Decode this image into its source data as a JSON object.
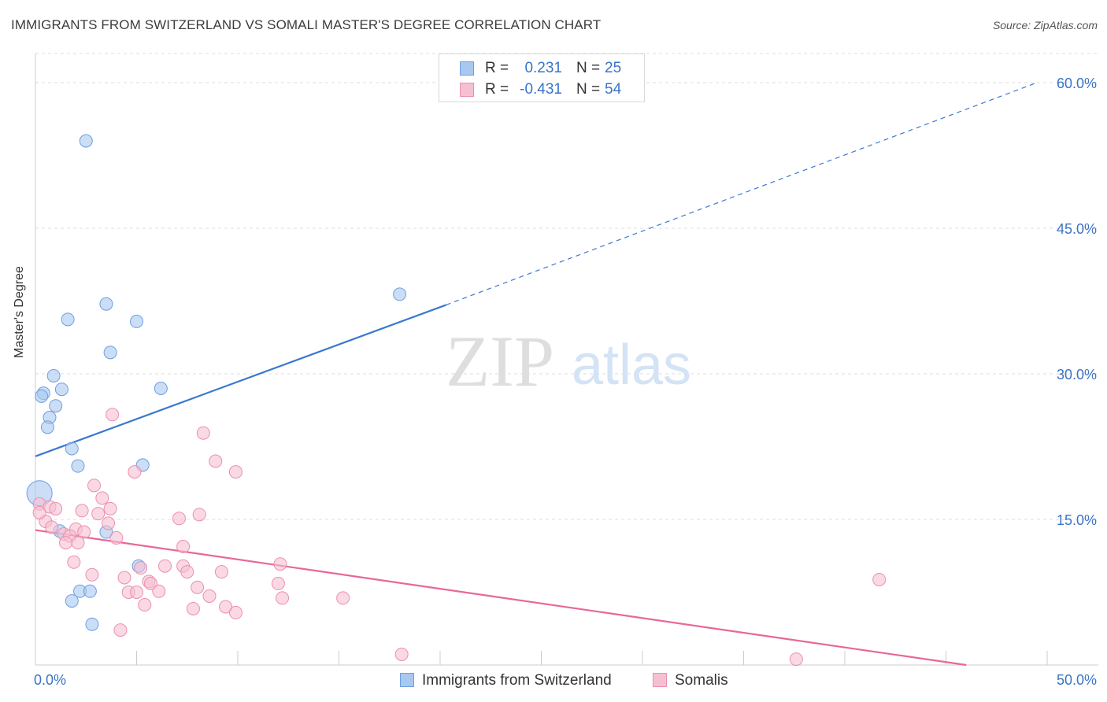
{
  "header": {
    "title": "IMMIGRANTS FROM SWITZERLAND VS SOMALI MASTER'S DEGREE CORRELATION CHART",
    "source": "Source: ZipAtlas.com"
  },
  "watermark": {
    "zip": "ZIP",
    "atlas": "atlas"
  },
  "stats": [
    {
      "r_label": "R =",
      "r_value": "0.231",
      "n_label": "N =",
      "n_value": "25",
      "color": "#a9c8f0",
      "border": "#6d9fe0"
    },
    {
      "r_label": "R =",
      "r_value": "-0.431",
      "n_label": "N =",
      "n_value": "54",
      "color": "#f7c0d2",
      "border": "#eb8fae"
    }
  ],
  "legend": {
    "switzerland": "Immigrants from Switzerland",
    "somalis": "Somalis"
  },
  "chart_data": {
    "type": "scatter",
    "title": "IMMIGRANTS FROM SWITZERLAND VS SOMALI MASTER'S DEGREE CORRELATION CHART",
    "ylabel": "Master's Degree",
    "xlabel": "",
    "xlim": [
      0,
      50
    ],
    "ylim": [
      0,
      63
    ],
    "x_tick_labels": [
      {
        "value": 0,
        "label": "0.0%"
      },
      {
        "value": 50,
        "label": "50.0%"
      }
    ],
    "y_tick_labels": [
      {
        "value": 15,
        "label": "15.0%"
      },
      {
        "value": 30,
        "label": "30.0%"
      },
      {
        "value": 45,
        "label": "45.0%"
      },
      {
        "value": 60,
        "label": "60.0%"
      }
    ],
    "series": [
      {
        "name": "Immigrants from Switzerland",
        "color": "#a9c8f0",
        "edge": "#6d9fe0",
        "line_color": "#3a78d0",
        "trend": {
          "x0": 0,
          "y0": 21.5,
          "x1": 20.3,
          "y1": 37.1,
          "dash_to_x": 49.5,
          "dash_to_y": 60.0
        },
        "points": [
          {
            "x": 2.5,
            "y": 54.0,
            "big": false
          },
          {
            "x": 18.0,
            "y": 38.2,
            "big": false
          },
          {
            "x": 3.5,
            "y": 37.2,
            "big": false
          },
          {
            "x": 1.6,
            "y": 35.6,
            "big": false
          },
          {
            "x": 5.0,
            "y": 35.4,
            "big": false
          },
          {
            "x": 3.7,
            "y": 32.2,
            "big": false
          },
          {
            "x": 0.9,
            "y": 29.8,
            "big": false
          },
          {
            "x": 6.2,
            "y": 28.5,
            "big": false
          },
          {
            "x": 0.4,
            "y": 28.0,
            "big": false
          },
          {
            "x": 1.3,
            "y": 28.4,
            "big": false
          },
          {
            "x": 0.3,
            "y": 27.7,
            "big": false
          },
          {
            "x": 1.0,
            "y": 26.7,
            "big": false
          },
          {
            "x": 0.7,
            "y": 25.5,
            "big": false
          },
          {
            "x": 0.6,
            "y": 24.5,
            "big": false
          },
          {
            "x": 1.8,
            "y": 22.3,
            "big": false
          },
          {
            "x": 2.1,
            "y": 20.5,
            "big": false
          },
          {
            "x": 5.3,
            "y": 20.6,
            "big": false
          },
          {
            "x": 0.2,
            "y": 17.7,
            "big": true
          },
          {
            "x": 1.2,
            "y": 13.8,
            "big": false
          },
          {
            "x": 3.5,
            "y": 13.7,
            "big": false
          },
          {
            "x": 5.1,
            "y": 10.2,
            "big": false
          },
          {
            "x": 2.2,
            "y": 7.6,
            "big": false
          },
          {
            "x": 2.7,
            "y": 7.6,
            "big": false
          },
          {
            "x": 1.8,
            "y": 6.6,
            "big": false
          },
          {
            "x": 2.8,
            "y": 4.2,
            "big": false
          }
        ]
      },
      {
        "name": "Somalis",
        "color": "#f7c0d2",
        "edge": "#eb8fae",
        "line_color": "#e8679a",
        "trend": {
          "x0": 0,
          "y0": 13.9,
          "x1": 46.0,
          "y1": 0.0
        },
        "points": [
          {
            "x": 3.8,
            "y": 25.8
          },
          {
            "x": 8.3,
            "y": 23.9
          },
          {
            "x": 8.9,
            "y": 21.0
          },
          {
            "x": 9.9,
            "y": 19.9
          },
          {
            "x": 4.9,
            "y": 19.9
          },
          {
            "x": 2.9,
            "y": 18.5
          },
          {
            "x": 3.3,
            "y": 17.2
          },
          {
            "x": 0.2,
            "y": 16.6
          },
          {
            "x": 0.7,
            "y": 16.3
          },
          {
            "x": 1.0,
            "y": 16.1
          },
          {
            "x": 3.7,
            "y": 16.1
          },
          {
            "x": 2.3,
            "y": 15.9
          },
          {
            "x": 3.1,
            "y": 15.6
          },
          {
            "x": 8.1,
            "y": 15.5
          },
          {
            "x": 7.1,
            "y": 15.1
          },
          {
            "x": 0.5,
            "y": 14.8
          },
          {
            "x": 3.6,
            "y": 14.6
          },
          {
            "x": 0.8,
            "y": 14.2
          },
          {
            "x": 2.0,
            "y": 14.0
          },
          {
            "x": 2.4,
            "y": 13.7
          },
          {
            "x": 1.4,
            "y": 13.5
          },
          {
            "x": 1.7,
            "y": 13.3
          },
          {
            "x": 4.0,
            "y": 13.1
          },
          {
            "x": 1.5,
            "y": 12.6
          },
          {
            "x": 2.1,
            "y": 12.6
          },
          {
            "x": 7.3,
            "y": 12.2
          },
          {
            "x": 1.9,
            "y": 10.6
          },
          {
            "x": 12.1,
            "y": 10.4
          },
          {
            "x": 6.4,
            "y": 10.2
          },
          {
            "x": 7.3,
            "y": 10.2
          },
          {
            "x": 5.2,
            "y": 10.0
          },
          {
            "x": 7.5,
            "y": 9.6
          },
          {
            "x": 9.2,
            "y": 9.6
          },
          {
            "x": 2.8,
            "y": 9.3
          },
          {
            "x": 4.4,
            "y": 9.0
          },
          {
            "x": 41.7,
            "y": 8.8
          },
          {
            "x": 5.6,
            "y": 8.6
          },
          {
            "x": 5.7,
            "y": 8.4
          },
          {
            "x": 12.0,
            "y": 8.4
          },
          {
            "x": 8.0,
            "y": 8.0
          },
          {
            "x": 6.1,
            "y": 7.6
          },
          {
            "x": 4.6,
            "y": 7.5
          },
          {
            "x": 5.0,
            "y": 7.5
          },
          {
            "x": 8.6,
            "y": 7.1
          },
          {
            "x": 12.2,
            "y": 6.9
          },
          {
            "x": 15.2,
            "y": 6.9
          },
          {
            "x": 5.4,
            "y": 6.2
          },
          {
            "x": 9.4,
            "y": 6.0
          },
          {
            "x": 7.8,
            "y": 5.8
          },
          {
            "x": 9.9,
            "y": 5.4
          },
          {
            "x": 4.2,
            "y": 3.6
          },
          {
            "x": 18.1,
            "y": 1.1
          },
          {
            "x": 37.6,
            "y": 0.6
          },
          {
            "x": 0.2,
            "y": 15.7
          }
        ]
      }
    ]
  }
}
